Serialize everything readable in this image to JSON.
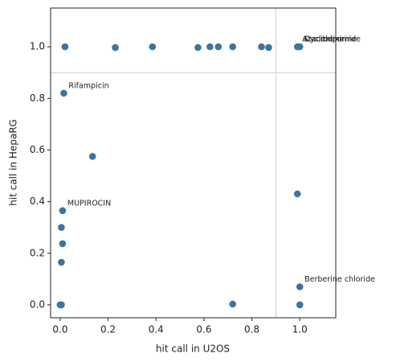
{
  "chart_data": {
    "type": "scatter",
    "x_label": "hit call in U2OS",
    "y_label": "hit call in HepaRG",
    "xlim": [
      -0.04,
      1.15
    ],
    "ylim": [
      -0.05,
      1.15
    ],
    "xticks": [
      {
        "value": 0,
        "label": "0.0"
      },
      {
        "value": 0.2,
        "label": "0.2"
      },
      {
        "value": 0.4,
        "label": "0.4"
      },
      {
        "value": 0.6,
        "label": "0.6"
      },
      {
        "value": 0.8,
        "label": "0.8"
      },
      {
        "value": 1,
        "label": "1.0"
      }
    ],
    "yticks": [
      {
        "value": 0,
        "label": "0.0"
      },
      {
        "value": 0.2,
        "label": "0.2"
      },
      {
        "value": 0.4,
        "label": "0.4"
      },
      {
        "value": 0.6,
        "label": "0.6"
      },
      {
        "value": 0.8,
        "label": "0.8"
      },
      {
        "value": 1,
        "label": "1.0"
      }
    ],
    "vline": 0.9,
    "hline": 0.9,
    "line_color": "#cccccc",
    "series": [
      {
        "color": "#3b75a0",
        "x": [
          0.02,
          0.23,
          0.385,
          0.575,
          0.625,
          0.66,
          0.72,
          0.84,
          0.87,
          0.99,
          0.995,
          1.0,
          0.015,
          0.135,
          0.01,
          0.005,
          0.01,
          0.005,
          0.005,
          0.0,
          0.72,
          0.99,
          1.0,
          1.0
        ],
        "values": [
          1.0,
          0.997,
          1.0,
          0.997,
          1.0,
          1.0,
          1.0,
          1.0,
          0.997,
          1.0,
          1.0,
          1.0,
          0.82,
          0.575,
          0.365,
          0.3,
          0.237,
          0.165,
          0.0,
          0.0,
          0.003,
          0.43,
          0.07,
          0.0
        ],
        "labels": [
          null,
          null,
          null,
          null,
          null,
          null,
          null,
          null,
          null,
          "Azacitidine",
          "Staurosporine",
          "Cycloheximide",
          "Rifampicin",
          null,
          "MUPIROCIN",
          null,
          null,
          null,
          null,
          null,
          null,
          null,
          "Berberine chloride",
          null
        ]
      }
    ]
  }
}
